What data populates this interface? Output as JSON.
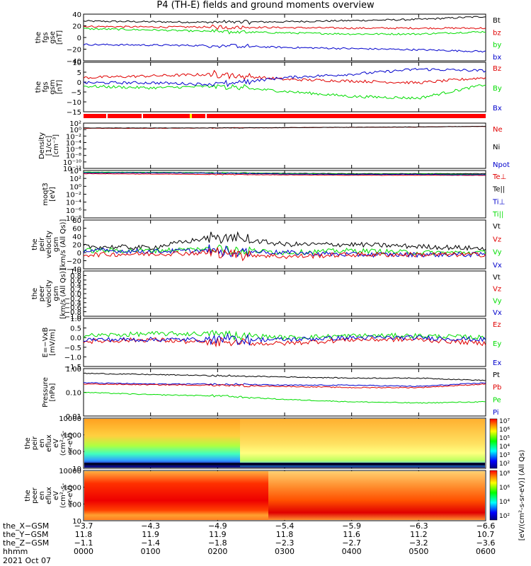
{
  "title": "P4 (TH-E) fields and ground moments overview",
  "colors": {
    "black": "#000000",
    "red": "#e00000",
    "green": "#00dd00",
    "blue": "#0000cc"
  },
  "panels": [
    {
      "id": "fgs",
      "ylabel": [
        "the",
        "fgs",
        "gse",
        "[nT]"
      ],
      "ticks": [
        "40",
        "20",
        "0",
        "−20",
        "−40"
      ],
      "legend": [
        {
          "text": "Bt",
          "color": "#000000"
        },
        {
          "text": "bz",
          "color": "#e00000"
        },
        {
          "text": "by",
          "color": "#00dd00"
        },
        {
          "text": "bx",
          "color": "#0000cc"
        }
      ]
    },
    {
      "id": "fgs_gsm",
      "ylabel": [
        "the",
        "fgs",
        "gsm",
        "[nT]"
      ],
      "ticks": [
        "10",
        "5",
        "0",
        "−5",
        "−10",
        "−15"
      ],
      "legend": [
        {
          "text": "Bz",
          "color": "#e00000"
        },
        {
          "text": "By",
          "color": "#00dd00"
        },
        {
          "text": "Bx",
          "color": "#0000cc"
        }
      ]
    },
    {
      "id": "density",
      "ylabel": [
        "Density",
        "[1/cc]",
        "[cm⁻³]"
      ],
      "ticks": [
        "10²",
        "10⁰",
        "10⁻²",
        "10⁻⁴",
        "10⁻⁶",
        "10⁻⁸",
        "10⁻¹⁰",
        "10⁻¹²"
      ],
      "legend": [
        {
          "text": "Ne",
          "color": "#e00000"
        },
        {
          "text": "Ni",
          "color": "#000000"
        },
        {
          "text": "Npot",
          "color": "#0000cc"
        }
      ]
    },
    {
      "id": "temp",
      "ylabel": [
        "moqt3",
        "[eV]"
      ],
      "ticks": [
        "10⁴",
        "10²",
        "10⁰",
        "10⁻²",
        "10⁻⁴",
        "10⁻⁶",
        "10⁻⁸"
      ],
      "legend": [
        {
          "text": "Te⊥",
          "color": "#e00000"
        },
        {
          "text": "Te||",
          "color": "#000000"
        },
        {
          "text": "Ti⊥",
          "color": "#0000cc"
        },
        {
          "text": "Ti||",
          "color": "#00dd00"
        }
      ]
    },
    {
      "id": "peir_vel",
      "ylabel": [
        "the",
        "peir",
        "velocity",
        "gsm",
        "[km/s (All Qs)]"
      ],
      "ticks": [
        "80",
        "60",
        "40",
        "20",
        "0",
        "−20",
        "−40"
      ],
      "legend": [
        {
          "text": "Vt",
          "color": "#000000"
        },
        {
          "text": "Vz",
          "color": "#e00000"
        },
        {
          "text": "Vy",
          "color": "#00dd00"
        },
        {
          "text": "Vx",
          "color": "#0000cc"
        }
      ]
    },
    {
      "id": "peer_vel",
      "ylabel": [
        "the",
        "peer",
        "velocity",
        "gsm",
        "[km/s (All Qs)]"
      ],
      "ticks": [
        "1.0",
        "0.8",
        "0.6",
        "0.4",
        "0.2",
        "0.0",
        "−0.2",
        "−0.4",
        "−0.6",
        "−0.8",
        "−1.0"
      ],
      "legend": [
        {
          "text": "Vt",
          "color": "#000000"
        },
        {
          "text": "Vz",
          "color": "#e00000"
        },
        {
          "text": "Vy",
          "color": "#00dd00"
        },
        {
          "text": "Vx",
          "color": "#0000cc"
        }
      ]
    },
    {
      "id": "efield",
      "ylabel": [
        "E=−VxB",
        "[mV/m]"
      ],
      "ticks": [
        "1.0",
        "0.5",
        "0.0",
        "−0.5",
        "−1.0",
        "−1.5"
      ],
      "legend": [
        {
          "text": "Ez",
          "color": "#e00000"
        },
        {
          "text": "Ey",
          "color": "#00dd00"
        },
        {
          "text": "Ex",
          "color": "#0000cc"
        }
      ]
    },
    {
      "id": "pressure",
      "ylabel": [
        "Pressure",
        "[nPa]"
      ],
      "ticks": [
        "1.00",
        "0.10",
        "0.01"
      ],
      "legend": [
        {
          "text": "Pt",
          "color": "#000000"
        },
        {
          "text": "Pb",
          "color": "#e00000"
        },
        {
          "text": "Pe",
          "color": "#00dd00"
        },
        {
          "text": "Pi",
          "color": "#0000cc"
        }
      ]
    },
    {
      "id": "peir_spec",
      "ylabel": [
        "the",
        "peir",
        "en",
        "eflux",
        "eV",
        "(cm²-s-",
        "sr-eV)"
      ],
      "ticks": [
        "10000",
        "1000",
        "100",
        "10"
      ],
      "legend": []
    },
    {
      "id": "peer_spec",
      "ylabel": [
        "the",
        "peer",
        "en",
        "eflux",
        "eV",
        "(cm²-s-",
        "sr-eV)"
      ],
      "ticks": [
        "10000",
        "1000",
        "100",
        "10"
      ],
      "legend": []
    }
  ],
  "colorbar": {
    "top_labels": [
      "10⁷",
      "10⁶",
      "10⁵",
      "10⁴",
      "10³",
      "10²"
    ],
    "bottom_labels": [
      "10⁸",
      "10⁶",
      "10⁴",
      "10²"
    ],
    "unit": "[eV/(cm²-s-sr-eV)] (All Qs)"
  },
  "footer": {
    "rows": [
      "the_X−GSM",
      "the_Y−GSM",
      "the_Z−GSM",
      "hhmm"
    ],
    "columns": [
      [
        "−3.7",
        "11.8",
        "−1.1",
        "0000"
      ],
      [
        "−4.3",
        "11.9",
        "−1.4",
        "0100"
      ],
      [
        "−4.9",
        "11.9",
        "−1.8",
        "0200"
      ],
      [
        "−5.4",
        "11.8",
        "−2.3",
        "0300"
      ],
      [
        "−5.9",
        "11.6",
        "−2.7",
        "0400"
      ],
      [
        "−6.3",
        "11.2",
        "−3.2",
        "0500"
      ],
      [
        "−6.6",
        "10.7",
        "−3.6",
        "0600"
      ]
    ],
    "date": "2021 Oct 07"
  },
  "chart_data": [
    {
      "type": "line",
      "panel": "fgs",
      "x_hours": [
        0,
        1,
        2,
        3,
        4,
        5,
        6
      ],
      "ylim": [
        -40,
        40
      ],
      "series": [
        {
          "name": "Bt",
          "color": "#000000",
          "values": [
            28,
            27,
            26,
            27,
            29,
            31,
            36
          ]
        },
        {
          "name": "bz",
          "color": "#e00000",
          "values": [
            19,
            18,
            18,
            17,
            16,
            16,
            16
          ]
        },
        {
          "name": "by",
          "color": "#00dd00",
          "values": [
            15,
            13,
            10,
            8,
            6,
            6,
            10
          ]
        },
        {
          "name": "bx",
          "color": "#0000cc",
          "values": [
            -12,
            -13,
            -14,
            -17,
            -19,
            -21,
            -24
          ]
        }
      ]
    },
    {
      "type": "line",
      "panel": "fgs_gsm",
      "x_hours": [
        0,
        1,
        2,
        3,
        4,
        5,
        6
      ],
      "ylim": [
        -18,
        11
      ],
      "series": [
        {
          "name": "Bz",
          "color": "#e00000",
          "values": [
            2,
            3,
            4,
            1,
            0,
            -1,
            2
          ]
        },
        {
          "name": "By",
          "color": "#00dd00",
          "values": [
            -3,
            -4,
            -3,
            -6,
            -9,
            -10,
            -2
          ]
        },
        {
          "name": "Bx",
          "color": "#0000cc",
          "values": [
            -1,
            -1,
            -2,
            2,
            4,
            7,
            6
          ]
        }
      ]
    },
    {
      "type": "line",
      "panel": "density",
      "x_hours": [
        0,
        1,
        2,
        3,
        4,
        5,
        6
      ],
      "ylim": [
        -12,
        2
      ],
      "log_scale": true,
      "series": [
        {
          "name": "Ne",
          "color": "#e00000",
          "values": [
            0.4,
            0.4,
            0.5,
            0.6,
            0.7,
            0.8,
            1.0
          ]
        },
        {
          "name": "Ni",
          "color": "#000000",
          "values": [
            0.5,
            0.5,
            0.5,
            0.6,
            0.7,
            0.8,
            1.0
          ]
        }
      ]
    },
    {
      "type": "line",
      "panel": "temp",
      "x_hours": [
        0,
        1,
        2,
        3,
        4,
        5,
        6
      ],
      "ylim": [
        -8,
        4
      ],
      "log_scale": true,
      "series": [
        {
          "name": "Te||",
          "color": "#000000",
          "values": [
            3.5,
            3.5,
            3.4,
            3.3,
            3.2,
            3.2,
            3.2
          ]
        },
        {
          "name": "Ti||",
          "color": "#00dd00",
          "values": [
            3.6,
            3.5,
            3.4,
            3.2,
            3.1,
            3.1,
            3.0
          ]
        },
        {
          "name": "Te⊥",
          "color": "#e00000",
          "values": [
            3.2,
            3.1,
            3.0,
            2.9,
            2.8,
            2.8,
            2.8
          ]
        },
        {
          "name": "Ti⊥",
          "color": "#0000cc",
          "values": [
            3.4,
            3.4,
            3.3,
            3.1,
            3.0,
            3.0,
            2.9
          ]
        }
      ]
    },
    {
      "type": "line",
      "panel": "peir_vel",
      "x_hours": [
        0,
        1,
        2,
        3,
        4,
        5,
        6
      ],
      "ylim": [
        -40,
        80
      ],
      "series": [
        {
          "name": "Vt",
          "color": "#000000",
          "values": [
            15,
            12,
            40,
            20,
            20,
            15,
            10
          ]
        },
        {
          "name": "Vy",
          "color": "#00dd00",
          "values": [
            5,
            5,
            10,
            0,
            5,
            0,
            0
          ]
        },
        {
          "name": "Vx",
          "color": "#0000cc",
          "values": [
            5,
            3,
            5,
            0,
            -5,
            -5,
            -5
          ]
        },
        {
          "name": "Vz",
          "color": "#e00000",
          "values": [
            -5,
            -3,
            0,
            -10,
            -5,
            -5,
            -5
          ]
        }
      ]
    },
    {
      "type": "line",
      "panel": "efield",
      "x_hours": [
        0,
        1,
        2,
        3,
        4,
        5,
        6
      ],
      "ylim": [
        -1.5,
        1.0
      ],
      "series": [
        {
          "name": "Ey",
          "color": "#00dd00",
          "values": [
            0.1,
            0.2,
            0.2,
            0.0,
            0.1,
            0.1,
            0.0
          ]
        },
        {
          "name": "Ez",
          "color": "#e00000",
          "values": [
            -0.2,
            -0.1,
            -0.3,
            -0.3,
            -0.1,
            -0.1,
            -0.3
          ]
        },
        {
          "name": "Ex",
          "color": "#0000cc",
          "values": [
            -0.1,
            -0.1,
            -0.1,
            -0.1,
            0.0,
            0.0,
            -0.1
          ]
        }
      ]
    },
    {
      "type": "line",
      "panel": "pressure",
      "x_hours": [
        0,
        1,
        2,
        3,
        4,
        5,
        6
      ],
      "ylim": [
        -2,
        0
      ],
      "log_scale": true,
      "series": [
        {
          "name": "Pt",
          "color": "#000000",
          "values": [
            -0.2,
            -0.25,
            -0.3,
            -0.35,
            -0.4,
            -0.4,
            -0.5
          ]
        },
        {
          "name": "Pi",
          "color": "#0000cc",
          "values": [
            -0.6,
            -0.65,
            -0.65,
            -0.7,
            -0.7,
            -0.75,
            -0.6
          ]
        },
        {
          "name": "Pb",
          "color": "#e00000",
          "values": [
            -0.65,
            -0.68,
            -0.7,
            -0.75,
            -0.8,
            -0.8,
            -0.65
          ]
        },
        {
          "name": "Pe",
          "color": "#00dd00",
          "values": [
            -1.0,
            -1.1,
            -1.15,
            -1.3,
            -1.4,
            -1.45,
            -1.4
          ]
        }
      ]
    },
    {
      "type": "heatmap",
      "panel": "peir_spec",
      "x_hours": [
        0,
        6
      ],
      "ylim": [
        5,
        30000
      ],
      "log_scale": true
    },
    {
      "type": "heatmap",
      "panel": "peer_spec",
      "x_hours": [
        0,
        6
      ],
      "ylim": [
        5,
        30000
      ],
      "log_scale": true
    }
  ]
}
